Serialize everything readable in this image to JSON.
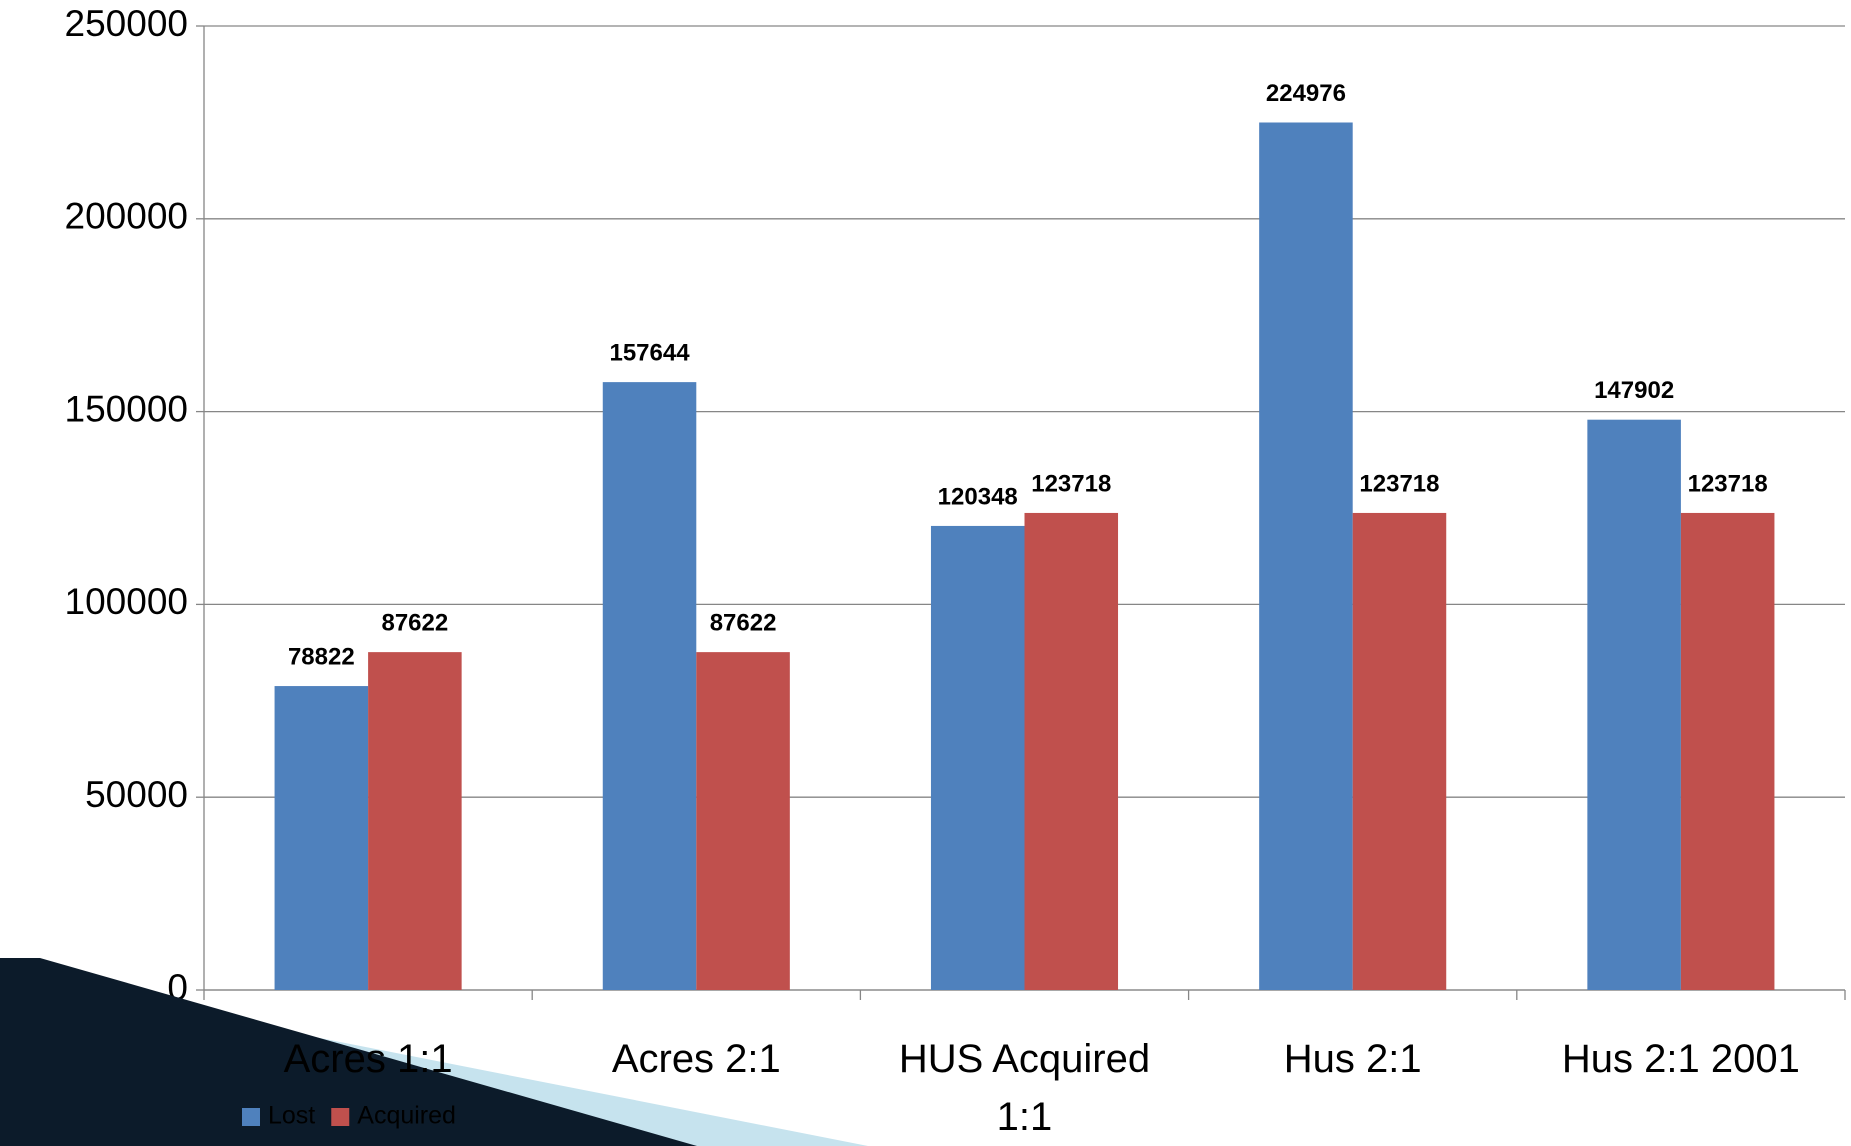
{
  "chart_data": {
    "type": "bar",
    "categories": [
      "Acres 1:1",
      "Acres 2:1",
      "HUS Acquired 1:1",
      "Hus 2:1",
      "Hus 2:1  2001"
    ],
    "series": [
      {
        "name": "Lost",
        "color": "#4f81bd",
        "values": [
          78822,
          157644,
          120348,
          224976,
          147902
        ]
      },
      {
        "name": "Acquired",
        "color": "#c0504d",
        "values": [
          87622,
          87622,
          123718,
          123718,
          123718
        ]
      }
    ],
    "ylim": [
      0,
      250000
    ],
    "yticks": [
      0,
      50000,
      100000,
      150000,
      200000,
      250000
    ],
    "grid": true,
    "legend": "bottom-left"
  }
}
